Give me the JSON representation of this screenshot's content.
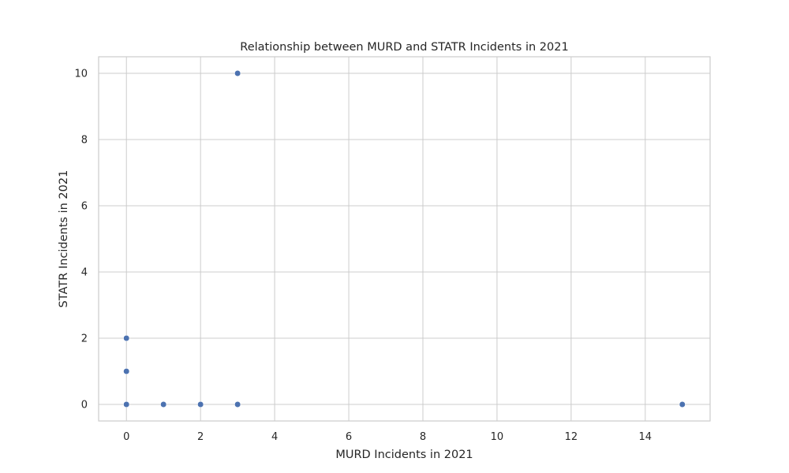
{
  "chart_data": {
    "type": "scatter",
    "title": "Relationship between MURD and STATR Incidents in 2021",
    "xlabel": "MURD Incidents in 2021",
    "ylabel": "STATR Incidents in 2021",
    "xlim": [
      -0.75,
      15.75
    ],
    "ylim": [
      -0.5,
      10.5
    ],
    "xticks": [
      0,
      2,
      4,
      6,
      8,
      10,
      12,
      14
    ],
    "yticks": [
      0,
      2,
      4,
      6,
      8,
      10
    ],
    "grid": true,
    "point_color": "#4c72b0",
    "points": [
      {
        "x": 3,
        "y": 10
      },
      {
        "x": 0,
        "y": 2
      },
      {
        "x": 0,
        "y": 1
      },
      {
        "x": 0,
        "y": 0
      },
      {
        "x": 1,
        "y": 0
      },
      {
        "x": 2,
        "y": 0
      },
      {
        "x": 3,
        "y": 0
      },
      {
        "x": 15,
        "y": 0
      }
    ]
  }
}
